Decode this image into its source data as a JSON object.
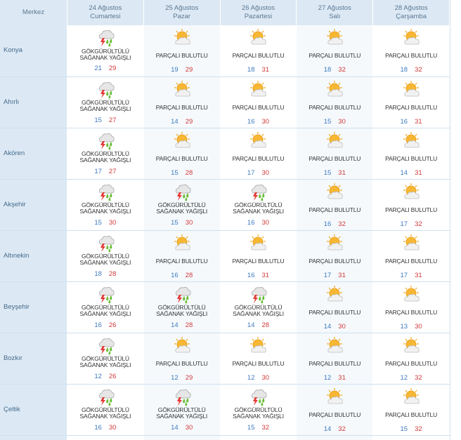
{
  "header": {
    "merkez": "Merkez",
    "days": [
      {
        "date": "24 Ağustos",
        "weekday": "Cumartesi"
      },
      {
        "date": "25 Ağustos",
        "weekday": "Pazar"
      },
      {
        "date": "26 Ağustos",
        "weekday": "Pazartesi"
      },
      {
        "date": "27 Ağustos",
        "weekday": "Salı"
      },
      {
        "date": "28 Ağustos",
        "weekday": "Çarşamba"
      }
    ]
  },
  "conditions": {
    "storm": [
      "GÖKGÜRÜLTÜLÜ",
      "SAĞANAK YAĞIŞLI"
    ],
    "partly": [
      "PARÇALI BULUTLU"
    ]
  },
  "icons": {
    "storm": "thunderstorm-rain-icon",
    "partly": "partly-cloudy-icon"
  },
  "colors": {
    "header_bg": "#dce9f4",
    "min_temp": "#3d7ac0",
    "max_temp": "#d23a3a"
  },
  "rows": [
    {
      "name": "Konya",
      "days": [
        {
          "cond": "storm",
          "min": "21",
          "max": "29"
        },
        {
          "cond": "partly",
          "min": "19",
          "max": "29"
        },
        {
          "cond": "partly",
          "min": "18",
          "max": "31"
        },
        {
          "cond": "partly",
          "min": "18",
          "max": "32"
        },
        {
          "cond": "partly",
          "min": "18",
          "max": "32"
        }
      ]
    },
    {
      "name": "Ahırlı",
      "days": [
        {
          "cond": "storm",
          "min": "15",
          "max": "27"
        },
        {
          "cond": "partly",
          "min": "14",
          "max": "29"
        },
        {
          "cond": "partly",
          "min": "16",
          "max": "30"
        },
        {
          "cond": "partly",
          "min": "15",
          "max": "30"
        },
        {
          "cond": "partly",
          "min": "16",
          "max": "31"
        }
      ]
    },
    {
      "name": "Akören",
      "days": [
        {
          "cond": "storm",
          "min": "17",
          "max": "27"
        },
        {
          "cond": "partly",
          "min": "15",
          "max": "28"
        },
        {
          "cond": "partly",
          "min": "17",
          "max": "30"
        },
        {
          "cond": "partly",
          "min": "15",
          "max": "31"
        },
        {
          "cond": "partly",
          "min": "14",
          "max": "31"
        }
      ]
    },
    {
      "name": "Akşehir",
      "days": [
        {
          "cond": "storm",
          "min": "15",
          "max": "30"
        },
        {
          "cond": "storm",
          "min": "15",
          "max": "30"
        },
        {
          "cond": "storm",
          "min": "16",
          "max": "30"
        },
        {
          "cond": "partly",
          "min": "16",
          "max": "32"
        },
        {
          "cond": "partly",
          "min": "17",
          "max": "32"
        }
      ]
    },
    {
      "name": "Altınekin",
      "days": [
        {
          "cond": "storm",
          "min": "18",
          "max": "28"
        },
        {
          "cond": "partly",
          "min": "16",
          "max": "28"
        },
        {
          "cond": "partly",
          "min": "16",
          "max": "31"
        },
        {
          "cond": "partly",
          "min": "17",
          "max": "31"
        },
        {
          "cond": "partly",
          "min": "17",
          "max": "31"
        }
      ]
    },
    {
      "name": "Beyşehir",
      "days": [
        {
          "cond": "storm",
          "min": "16",
          "max": "26"
        },
        {
          "cond": "storm",
          "min": "14",
          "max": "28"
        },
        {
          "cond": "storm",
          "min": "14",
          "max": "28"
        },
        {
          "cond": "partly",
          "min": "14",
          "max": "30"
        },
        {
          "cond": "partly",
          "min": "13",
          "max": "30"
        }
      ]
    },
    {
      "name": "Bozkır",
      "days": [
        {
          "cond": "storm",
          "min": "12",
          "max": "26"
        },
        {
          "cond": "partly",
          "min": "12",
          "max": "29"
        },
        {
          "cond": "partly",
          "min": "12",
          "max": "30"
        },
        {
          "cond": "partly",
          "min": "12",
          "max": "31"
        },
        {
          "cond": "partly",
          "min": "12",
          "max": "32"
        }
      ]
    },
    {
      "name": "Çeltik",
      "days": [
        {
          "cond": "storm",
          "min": "16",
          "max": "30"
        },
        {
          "cond": "storm",
          "min": "14",
          "max": "30"
        },
        {
          "cond": "storm",
          "min": "15",
          "max": "32"
        },
        {
          "cond": "partly",
          "min": "14",
          "max": "32"
        },
        {
          "cond": "partly",
          "min": "15",
          "max": "32"
        }
      ]
    }
  ]
}
